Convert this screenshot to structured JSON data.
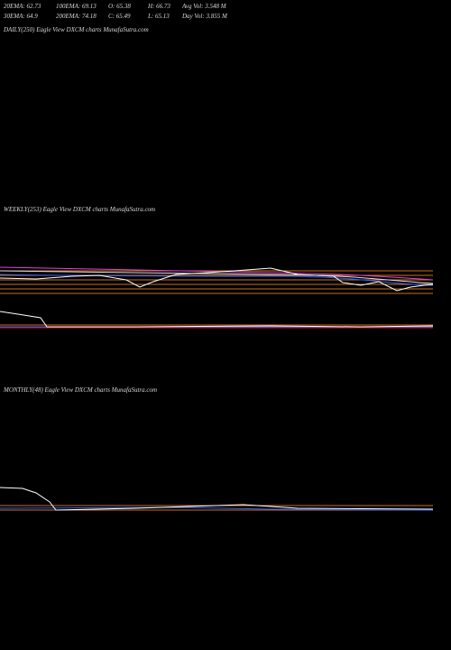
{
  "header": {
    "rows": [
      [
        "20EMA: 62.73",
        "100EMA: 69.13",
        "O: 65.38",
        "H: 66.73",
        "Avg Vol: 3.548  M"
      ],
      [
        "30EMA: 64.9",
        "200EMA: 74.18",
        "C: 65.49",
        "L: 65.13",
        "Day Vol: 3.855 M"
      ]
    ]
  },
  "panels": [
    {
      "label": "DAILY(250) Eagle  View  DXCM charts MunafaSutra.com"
    },
    {
      "label": "WEEKLY(253) Eagle  View  DXCM charts MunafaSutra.com"
    },
    {
      "label": "MONTHLY(48) Eagle  View  DXCM charts MunafaSutra.com"
    }
  ]
}
